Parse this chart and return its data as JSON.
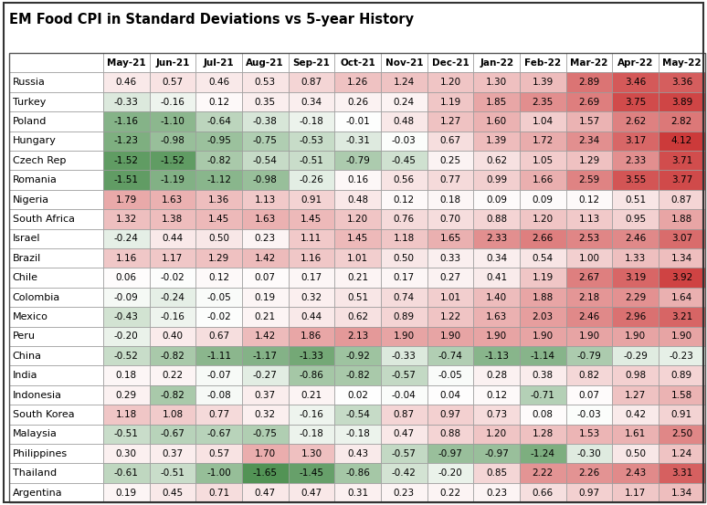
{
  "title": "EM Food CPI in Standard Deviations vs 5-year History",
  "columns": [
    "May-21",
    "Jun-21",
    "Jul-21",
    "Aug-21",
    "Sep-21",
    "Oct-21",
    "Nov-21",
    "Dec-21",
    "Jan-22",
    "Feb-22",
    "Mar-22",
    "Apr-22",
    "May-22"
  ],
  "rows": [
    {
      "country": "Russia",
      "values": [
        0.46,
        0.57,
        0.46,
        0.53,
        0.87,
        1.26,
        1.24,
        1.2,
        1.3,
        1.39,
        2.89,
        3.46,
        3.36
      ]
    },
    {
      "country": "Turkey",
      "values": [
        -0.33,
        -0.16,
        0.12,
        0.35,
        0.34,
        0.26,
        0.24,
        1.19,
        1.85,
        2.35,
        2.69,
        3.75,
        3.89
      ]
    },
    {
      "country": "Poland",
      "values": [
        -1.16,
        -1.1,
        -0.64,
        -0.38,
        -0.18,
        -0.01,
        0.48,
        1.27,
        1.6,
        1.04,
        1.57,
        2.62,
        2.82
      ]
    },
    {
      "country": "Hungary",
      "values": [
        -1.23,
        -0.98,
        -0.95,
        -0.75,
        -0.53,
        -0.31,
        -0.03,
        0.67,
        1.39,
        1.72,
        2.34,
        3.17,
        4.12
      ]
    },
    {
      "country": "Czech Rep",
      "values": [
        -1.52,
        -1.52,
        -0.82,
        -0.54,
        -0.51,
        -0.79,
        -0.45,
        0.25,
        0.62,
        1.05,
        1.29,
        2.33,
        3.71
      ]
    },
    {
      "country": "Romania",
      "values": [
        -1.51,
        -1.19,
        -1.12,
        -0.98,
        -0.26,
        0.16,
        0.56,
        0.77,
        0.99,
        1.66,
        2.59,
        3.55,
        3.77
      ]
    },
    {
      "country": "Nigeria",
      "values": [
        1.79,
        1.63,
        1.36,
        1.13,
        0.91,
        0.48,
        0.12,
        0.18,
        0.09,
        0.09,
        0.12,
        0.51,
        0.87
      ]
    },
    {
      "country": "South Africa",
      "values": [
        1.32,
        1.38,
        1.45,
        1.63,
        1.45,
        1.2,
        0.76,
        0.7,
        0.88,
        1.2,
        1.13,
        0.95,
        1.88
      ]
    },
    {
      "country": "Israel",
      "values": [
        -0.24,
        0.44,
        0.5,
        0.23,
        1.11,
        1.45,
        1.18,
        1.65,
        2.33,
        2.66,
        2.53,
        2.46,
        3.07
      ]
    },
    {
      "country": "Brazil",
      "values": [
        1.16,
        1.17,
        1.29,
        1.42,
        1.16,
        1.01,
        0.5,
        0.33,
        0.34,
        0.54,
        1.0,
        1.33,
        1.34
      ]
    },
    {
      "country": "Chile",
      "values": [
        0.06,
        -0.02,
        0.12,
        0.07,
        0.17,
        0.21,
        0.17,
        0.27,
        0.41,
        1.19,
        2.67,
        3.19,
        3.92
      ]
    },
    {
      "country": "Colombia",
      "values": [
        -0.09,
        -0.24,
        -0.05,
        0.19,
        0.32,
        0.51,
        0.74,
        1.01,
        1.4,
        1.88,
        2.18,
        2.29,
        1.64
      ]
    },
    {
      "country": "Mexico",
      "values": [
        -0.43,
        -0.16,
        -0.02,
        0.21,
        0.44,
        0.62,
        0.89,
        1.22,
        1.63,
        2.03,
        2.46,
        2.96,
        3.21
      ]
    },
    {
      "country": "Peru",
      "values": [
        -0.2,
        0.4,
        0.67,
        1.42,
        1.86,
        2.13,
        1.9,
        1.9,
        1.9,
        1.9,
        1.9,
        1.9,
        1.9
      ]
    },
    {
      "country": "China",
      "values": [
        -0.52,
        -0.82,
        -1.11,
        -1.17,
        -1.33,
        -0.92,
        -0.33,
        -0.74,
        -1.13,
        -1.14,
        -0.79,
        -0.29,
        -0.23
      ]
    },
    {
      "country": "India",
      "values": [
        0.18,
        0.22,
        -0.07,
        -0.27,
        -0.86,
        -0.82,
        -0.57,
        -0.05,
        0.28,
        0.38,
        0.82,
        0.98,
        0.89
      ]
    },
    {
      "country": "Indonesia",
      "values": [
        0.29,
        -0.82,
        -0.08,
        0.37,
        0.21,
        0.02,
        -0.04,
        0.04,
        0.12,
        -0.71,
        0.07,
        1.27,
        1.58
      ]
    },
    {
      "country": "South Korea",
      "values": [
        1.18,
        1.08,
        0.77,
        0.32,
        -0.16,
        -0.54,
        0.87,
        0.97,
        0.73,
        0.08,
        -0.03,
        0.42,
        0.91
      ]
    },
    {
      "country": "Malaysia",
      "values": [
        -0.51,
        -0.67,
        -0.67,
        -0.75,
        -0.18,
        -0.18,
        0.47,
        0.88,
        1.2,
        1.28,
        1.53,
        1.61,
        2.5
      ]
    },
    {
      "country": "Philippines",
      "values": [
        0.3,
        0.37,
        0.57,
        1.7,
        1.3,
        0.43,
        -0.57,
        -0.97,
        -0.97,
        -1.24,
        -0.3,
        0.5,
        1.24
      ]
    },
    {
      "country": "Thailand",
      "values": [
        -0.61,
        -0.51,
        -1.0,
        -1.65,
        -1.45,
        -0.86,
        -0.42,
        -0.2,
        0.85,
        2.22,
        2.26,
        2.43,
        3.31
      ]
    },
    {
      "country": "Argentina",
      "values": [
        0.19,
        0.45,
        0.71,
        0.47,
        0.47,
        0.31,
        0.23,
        0.22,
        0.23,
        0.66,
        0.97,
        1.17,
        1.34
      ]
    }
  ],
  "vmin": -2.0,
  "vmax": 4.5,
  "title_fontsize": 10.5,
  "cell_fontsize": 7.5,
  "header_fontsize": 7.5,
  "country_fontsize": 8.0,
  "fig_bg": "#ffffff",
  "border_color": "#999999",
  "text_color": "#000000"
}
